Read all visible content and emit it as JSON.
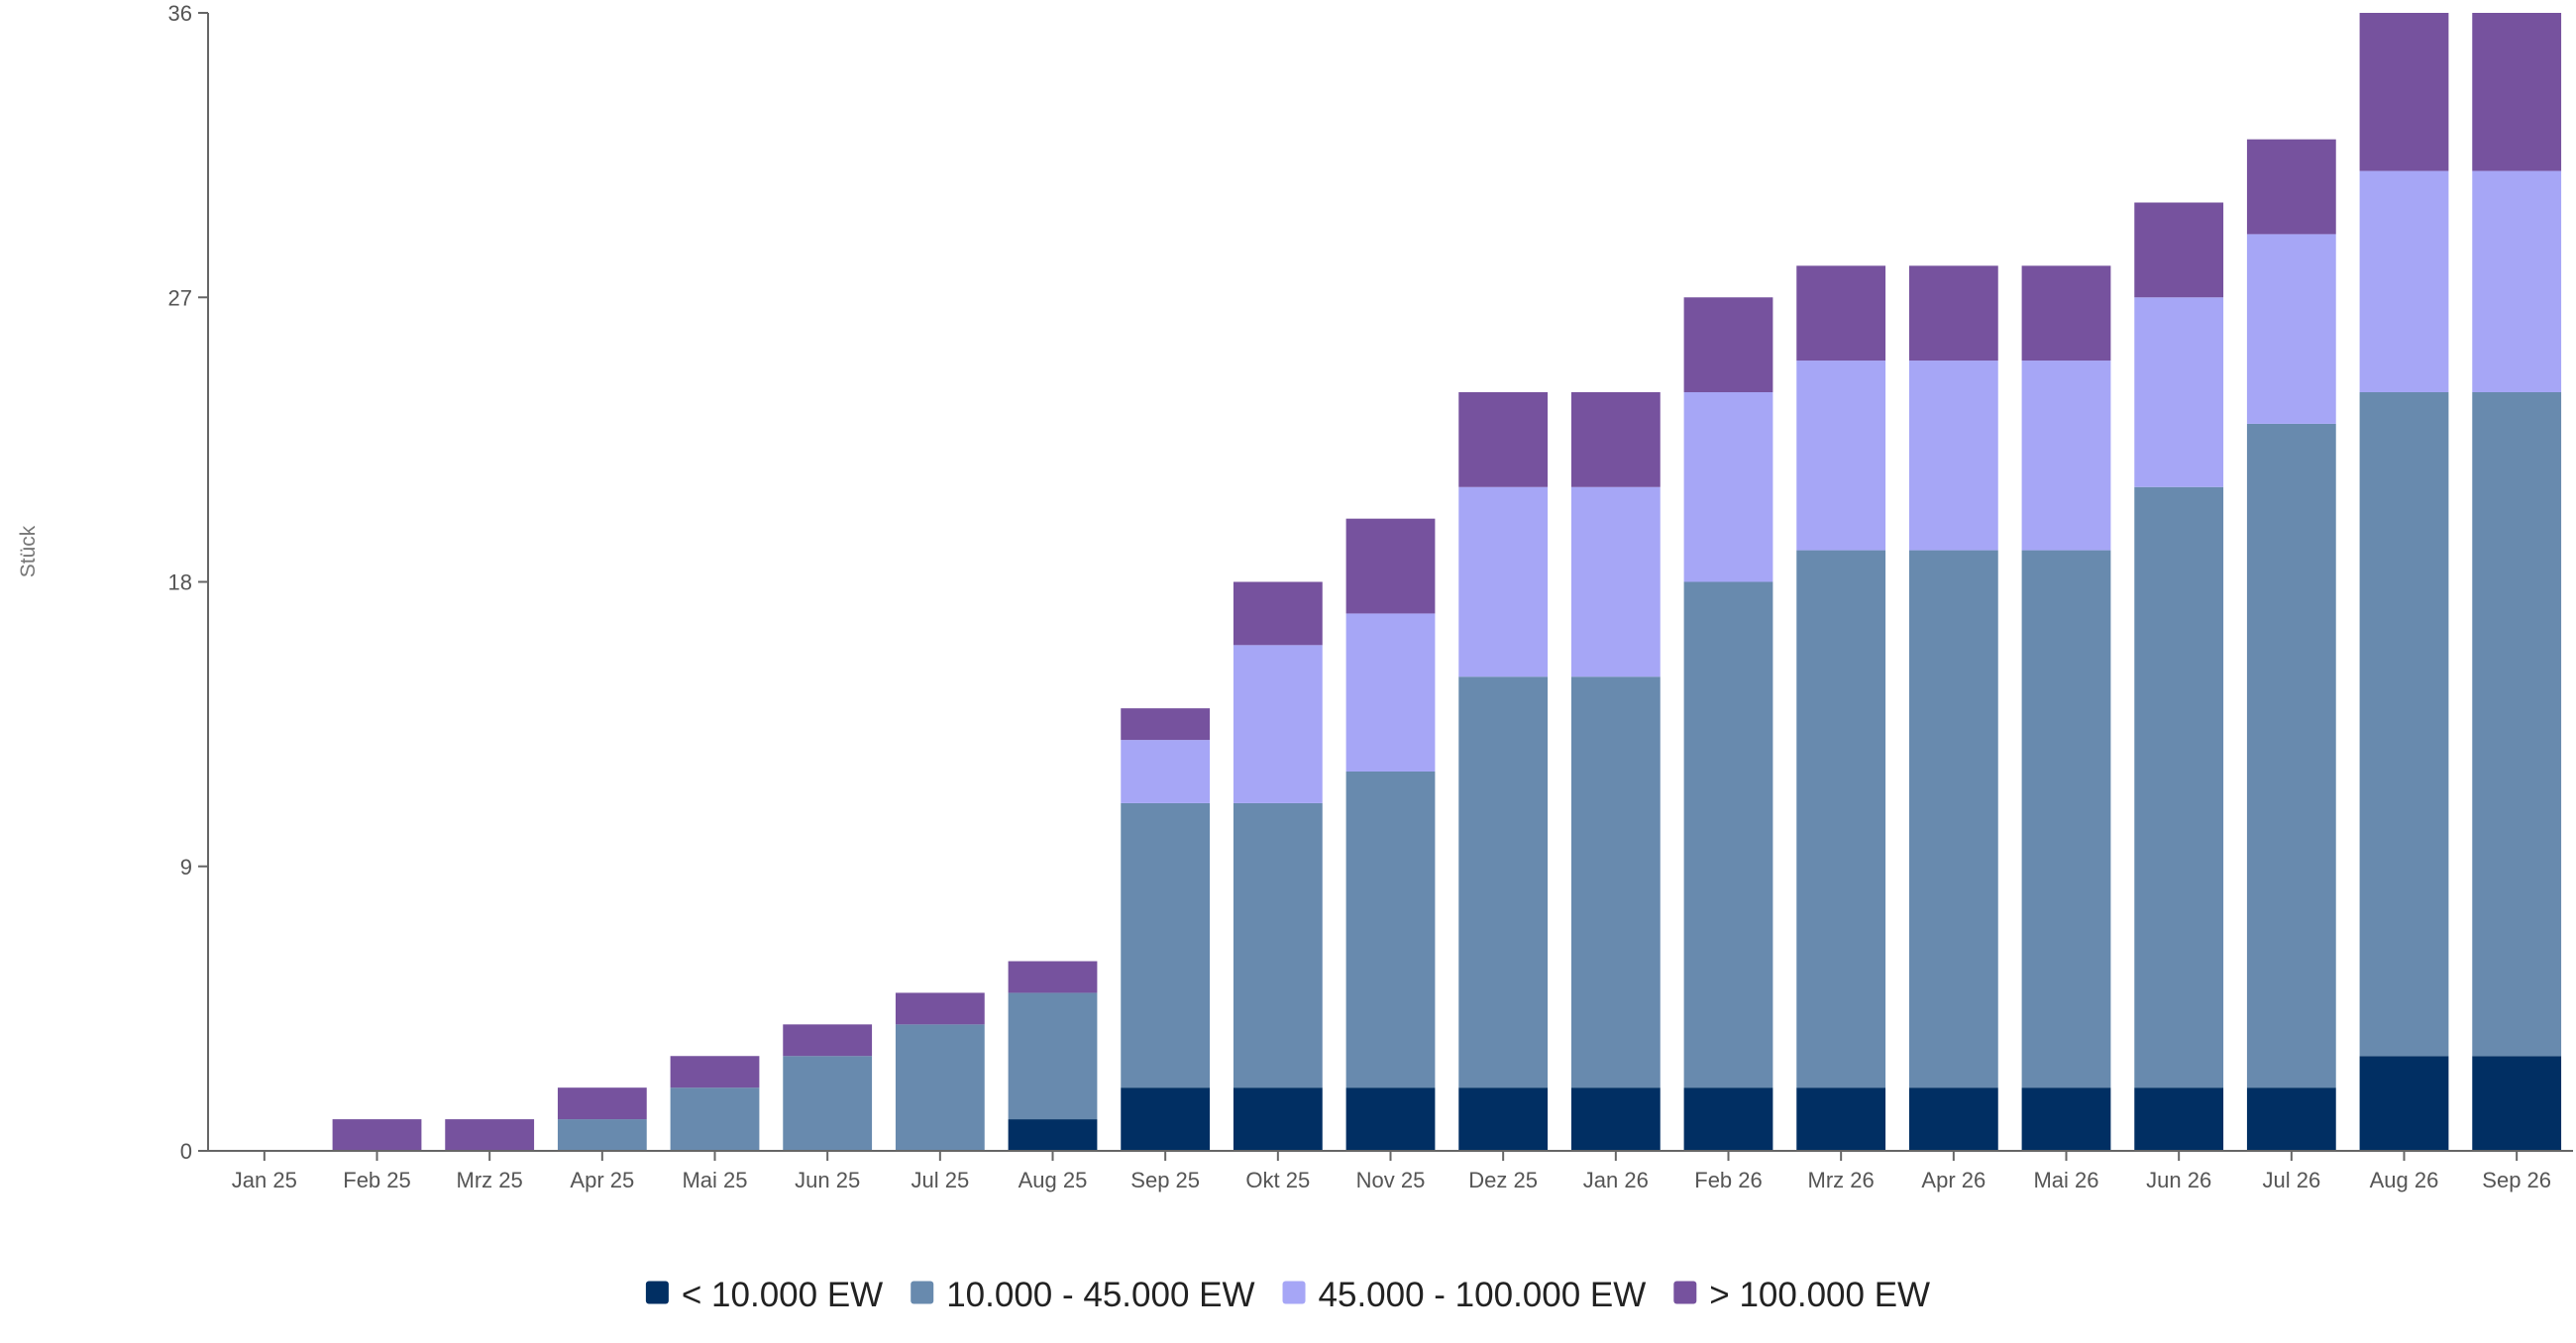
{
  "chart_data": {
    "type": "bar",
    "stacked": true,
    "ylabel": "Stück",
    "xlabel": "",
    "ylim": [
      0,
      36
    ],
    "yticks": [
      "0",
      "9",
      "18",
      "27",
      "36"
    ],
    "grid": false,
    "legend_position": "bottom-center",
    "categories": [
      "Jan 25",
      "Feb 25",
      "Mrz 25",
      "Apr 25",
      "Mai 25",
      "Jun 25",
      "Jul 25",
      "Aug 25",
      "Sep 25",
      "Okt 25",
      "Nov 25",
      "Dez 25",
      "Jan 26",
      "Feb 26",
      "Mrz 26",
      "Apr 26",
      "Mai 26",
      "Jun 26",
      "Jul 26",
      "Aug 26",
      "Sep 26"
    ],
    "series": [
      {
        "name": "< 10.000 EW",
        "color": "#012f63",
        "values": [
          0,
          0,
          0,
          0,
          0,
          0,
          0,
          1,
          2,
          2,
          2,
          2,
          2,
          2,
          2,
          2,
          2,
          2,
          2,
          3,
          3
        ]
      },
      {
        "name": "10.000 - 45.000 EW",
        "color": "#688aae",
        "values": [
          0,
          0,
          0,
          1,
          2,
          3,
          4,
          4,
          9,
          9,
          10,
          13,
          13,
          16,
          17,
          17,
          17,
          19,
          21,
          21,
          21
        ]
      },
      {
        "name": "45.000 - 100.000 EW",
        "color": "#a6a6f6",
        "values": [
          0,
          0,
          0,
          0,
          0,
          0,
          0,
          0,
          2,
          5,
          5,
          6,
          6,
          6,
          6,
          6,
          6,
          6,
          6,
          7,
          7
        ]
      },
      {
        "name": "> 100.000 EW",
        "color": "#76529e",
        "values": [
          0,
          1,
          1,
          1,
          1,
          1,
          1,
          1,
          1,
          2,
          3,
          3,
          3,
          3,
          3,
          3,
          3,
          3,
          3,
          5,
          5
        ]
      }
    ]
  }
}
